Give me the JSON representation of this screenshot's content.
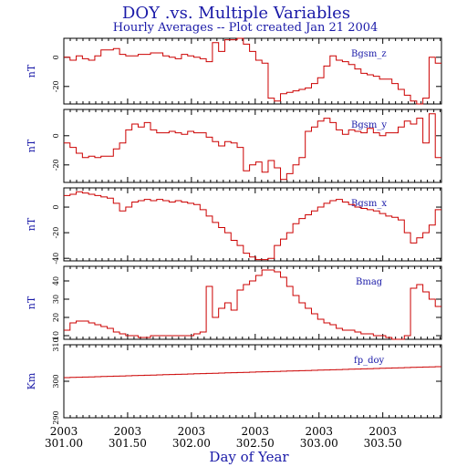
{
  "chart_data": {
    "type": "line",
    "title": "DOY .vs. Multiple Variables",
    "subtitle": "Hourly Averages -- Plot created Jan 21 2004",
    "xlabel": "Day of Year",
    "xlim": [
      301.0,
      303.96
    ],
    "x_ticks": [
      {
        "year": "2003",
        "doy": "301.00",
        "value": 301.0
      },
      {
        "year": "2003",
        "doy": "301.50",
        "value": 301.5
      },
      {
        "year": "2003",
        "doy": "302.00",
        "value": 302.0
      },
      {
        "year": "2003",
        "doy": "302.50",
        "value": 302.5
      },
      {
        "year": "2003",
        "doy": "303.00",
        "value": 303.0
      },
      {
        "year": "2003",
        "doy": "303.50",
        "value": 303.5
      }
    ],
    "line_color": "#cc0000",
    "panels": [
      {
        "name": "Bgsm_z",
        "ylabel": "nT",
        "ylim": [
          -32,
          13
        ],
        "ticks": [
          {
            "label": "0",
            "value": 0
          },
          {
            "label": "-20",
            "value": -20
          }
        ],
        "values": [
          0,
          -2,
          1,
          -1,
          -2,
          1,
          5,
          5,
          6,
          2,
          1,
          1,
          2,
          2,
          3,
          3,
          1,
          0,
          -1,
          2,
          1,
          0,
          -1,
          -3,
          10,
          4,
          12,
          12,
          13,
          9,
          4,
          -2,
          -4,
          -28,
          -30,
          -25,
          -24,
          -23,
          -22,
          -21,
          -18,
          -14,
          -6,
          1,
          -2,
          -3,
          -5,
          -8,
          -11,
          -12,
          -13,
          -15,
          -15,
          -18,
          -22,
          -26,
          -30,
          -32,
          -28,
          0,
          -4
        ]
      },
      {
        "name": "Bgsm_y",
        "ylabel": "nT",
        "ylim": [
          -32,
          18
        ],
        "ticks": [
          {
            "label": "0",
            "value": 0
          },
          {
            "label": "-20",
            "value": -20
          }
        ],
        "values": [
          -5,
          -8,
          -12,
          -15,
          -14,
          -15,
          -14,
          -14,
          -9,
          -5,
          4,
          8,
          6,
          9,
          4,
          2,
          2,
          3,
          2,
          1,
          3,
          2,
          2,
          -1,
          -4,
          -7,
          -4,
          -5,
          -8,
          -24,
          -20,
          -18,
          -25,
          -17,
          -22,
          -30,
          -26,
          -20,
          -15,
          3,
          6,
          10,
          12,
          9,
          4,
          1,
          4,
          3,
          2,
          5,
          2,
          0,
          2,
          2,
          6,
          10,
          8,
          12,
          -5,
          15,
          -15
        ]
      },
      {
        "name": "Bgsm_x",
        "ylabel": "nT",
        "ylim": [
          -42,
          15
        ],
        "ticks": [
          {
            "label": "0",
            "value": 0
          },
          {
            "label": "-20",
            "value": -20
          },
          {
            "label": "-40",
            "value": -40
          }
        ],
        "values": [
          9,
          10,
          12,
          11,
          10,
          9,
          8,
          7,
          3,
          -3,
          0,
          4,
          5,
          6,
          5,
          6,
          5,
          4,
          5,
          4,
          3,
          2,
          -2,
          -7,
          -12,
          -16,
          -20,
          -26,
          -30,
          -36,
          -39,
          -41,
          -41,
          -40,
          -30,
          -25,
          -20,
          -13,
          -9,
          -6,
          -3,
          0,
          3,
          5,
          6,
          4,
          2,
          0,
          -1,
          -2,
          -3,
          -5,
          -7,
          -8,
          -10,
          -20,
          -28,
          -24,
          -20,
          -14,
          -2
        ]
      },
      {
        "name": "Bmag",
        "ylabel": "nT",
        "ylim": [
          8,
          48
        ],
        "ticks": [
          {
            "label": "10",
            "value": 10
          },
          {
            "label": "20",
            "value": 20
          },
          {
            "label": "30",
            "value": 30
          },
          {
            "label": "40",
            "value": 40
          }
        ],
        "values": [
          13,
          17,
          18,
          18,
          17,
          16,
          15,
          14,
          12,
          11,
          10,
          10,
          9,
          9,
          10,
          10,
          10,
          10,
          10,
          10,
          10,
          11,
          12,
          37,
          20,
          25,
          28,
          24,
          35,
          38,
          40,
          43,
          46,
          46,
          45,
          42,
          37,
          32,
          28,
          25,
          22,
          19,
          17,
          16,
          14,
          13,
          13,
          12,
          11,
          11,
          10,
          10,
          9,
          8,
          8,
          10,
          36,
          38,
          34,
          30,
          26
        ]
      },
      {
        "name": "fp_doy",
        "ylabel": "Km",
        "ylim": [
          290,
          310
        ],
        "ticks": [
          {
            "label": "290",
            "value": 290
          },
          {
            "label": "300",
            "value": 300
          },
          {
            "label": "310",
            "value": 310
          }
        ],
        "values": [
          301.0,
          301.05,
          301.1,
          301.15,
          301.2,
          301.25,
          301.3,
          301.35,
          301.4,
          301.45,
          301.5,
          301.55,
          301.6,
          301.65,
          301.7,
          301.75,
          301.8,
          301.85,
          301.9,
          301.95,
          302.0,
          302.05,
          302.1,
          302.15,
          302.2,
          302.25,
          302.3,
          302.35,
          302.4,
          302.45,
          302.5,
          302.55,
          302.6,
          302.65,
          302.7,
          302.75,
          302.8,
          302.85,
          302.9,
          302.95,
          303.0,
          303.05,
          303.1,
          303.15,
          303.2,
          303.25,
          303.3,
          303.35,
          303.4,
          303.45,
          303.5,
          303.55,
          303.6,
          303.65,
          303.7,
          303.75,
          303.8,
          303.85,
          303.9,
          303.95,
          304.0
        ]
      }
    ]
  }
}
